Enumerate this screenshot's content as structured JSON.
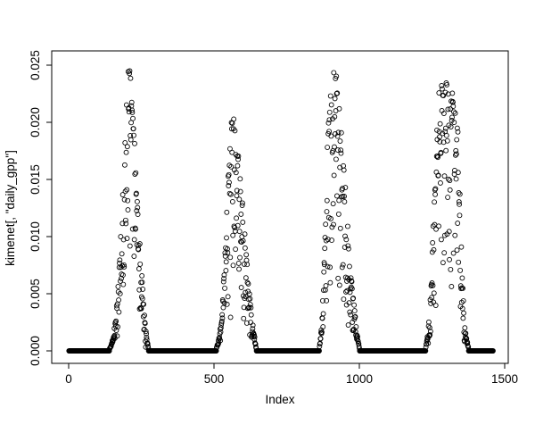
{
  "figure": {
    "background": "#ffffff",
    "axis_color": "#000000",
    "text_color": "#000000"
  },
  "chart_data": {
    "type": "scatter",
    "title": "",
    "xlabel": "Index",
    "ylabel": "kimenet[, \"daily_gpp\"]",
    "marker": "open-circle",
    "marker_color": "#000000",
    "grid": false,
    "legend": "none",
    "n_points": 1460,
    "x_start": 1,
    "x_end": 1460,
    "xticks": [
      0,
      500,
      1000,
      1500
    ],
    "xtick_labels": [
      "0",
      "500",
      "1000",
      "1500"
    ],
    "ytick_values": [
      0.0,
      0.005,
      0.01,
      0.015,
      0.02,
      0.025
    ],
    "ytick_labels": [
      "0.000",
      "0.005",
      "0.010",
      "0.015",
      "0.020",
      "0.025"
    ],
    "xlim": [
      -60,
      1520
    ],
    "ylim": [
      0,
      0.0255
    ],
    "y_max_observed": 0.0253,
    "baseline_value": 0,
    "description": "Daily GPP time series over four annual cycles: long runs of exactly zero (dormant season, drawn as solid black bars of overlapping circles) separated by four growing-season peaks of scattered points.",
    "zero_runs": [
      [
        1,
        140
      ],
      [
        275,
        508
      ],
      [
        646,
        862
      ],
      [
        1001,
        1228
      ],
      [
        1376,
        1460
      ]
    ],
    "seasons": [
      {
        "name": "year-1-peak",
        "peak_x": 208,
        "peak_y": 0.0253,
        "envelope": [
          [
            141,
            0.0002
          ],
          [
            148,
            0.0006
          ],
          [
            155,
            0.0013
          ],
          [
            162,
            0.0028
          ],
          [
            169,
            0.0055
          ],
          [
            176,
            0.0085
          ],
          [
            183,
            0.012
          ],
          [
            190,
            0.016
          ],
          [
            196,
            0.02
          ],
          [
            202,
            0.0235
          ],
          [
            208,
            0.0253
          ],
          [
            214,
            0.0235
          ],
          [
            220,
            0.021
          ],
          [
            227,
            0.018
          ],
          [
            234,
            0.0145
          ],
          [
            242,
            0.011
          ],
          [
            250,
            0.0075
          ],
          [
            258,
            0.0042
          ],
          [
            265,
            0.0018
          ],
          [
            270,
            0.0008
          ],
          [
            274,
            0.0003
          ]
        ]
      },
      {
        "name": "year-2-peak",
        "peak_x": 565,
        "peak_y": 0.0205,
        "envelope": [
          [
            509,
            0.0003
          ],
          [
            516,
            0.0009
          ],
          [
            523,
            0.002
          ],
          [
            530,
            0.0045
          ],
          [
            537,
            0.008
          ],
          [
            544,
            0.013
          ],
          [
            551,
            0.017
          ],
          [
            558,
            0.0195
          ],
          [
            565,
            0.0205
          ],
          [
            573,
            0.0198
          ],
          [
            581,
            0.018
          ],
          [
            590,
            0.0155
          ],
          [
            599,
            0.0125
          ],
          [
            608,
            0.0095
          ],
          [
            617,
            0.0065
          ],
          [
            626,
            0.004
          ],
          [
            635,
            0.002
          ],
          [
            641,
            0.0009
          ],
          [
            645,
            0.0003
          ]
        ]
      },
      {
        "name": "year-3-peak",
        "peak_x": 914,
        "peak_y": 0.0253,
        "envelope": [
          [
            863,
            0.0004
          ],
          [
            868,
            0.0015
          ],
          [
            873,
            0.004
          ],
          [
            878,
            0.008
          ],
          [
            884,
            0.013
          ],
          [
            890,
            0.018
          ],
          [
            897,
            0.022
          ],
          [
            905,
            0.0245
          ],
          [
            914,
            0.0253
          ],
          [
            922,
            0.0243
          ],
          [
            930,
            0.022
          ],
          [
            938,
            0.0195
          ],
          [
            946,
            0.0165
          ],
          [
            955,
            0.013
          ],
          [
            964,
            0.0095
          ],
          [
            973,
            0.0065
          ],
          [
            982,
            0.004
          ],
          [
            990,
            0.002
          ],
          [
            996,
            0.0008
          ],
          [
            1000,
            0.0003
          ]
        ]
      },
      {
        "name": "year-4-peak",
        "peak_x": 1280,
        "peak_y": 0.0243,
        "envelope": [
          [
            1229,
            0.0004
          ],
          [
            1236,
            0.0015
          ],
          [
            1243,
            0.004
          ],
          [
            1250,
            0.008
          ],
          [
            1257,
            0.013
          ],
          [
            1264,
            0.018
          ],
          [
            1272,
            0.022
          ],
          [
            1280,
            0.0243
          ],
          [
            1290,
            0.023
          ],
          [
            1300,
            0.0235
          ],
          [
            1310,
            0.022
          ],
          [
            1320,
            0.0225
          ],
          [
            1330,
            0.021
          ],
          [
            1340,
            0.019
          ],
          [
            1348,
            0.012
          ],
          [
            1355,
            0.006
          ],
          [
            1362,
            0.0025
          ],
          [
            1369,
            0.001
          ],
          [
            1375,
            0.0003
          ]
        ]
      }
    ]
  }
}
